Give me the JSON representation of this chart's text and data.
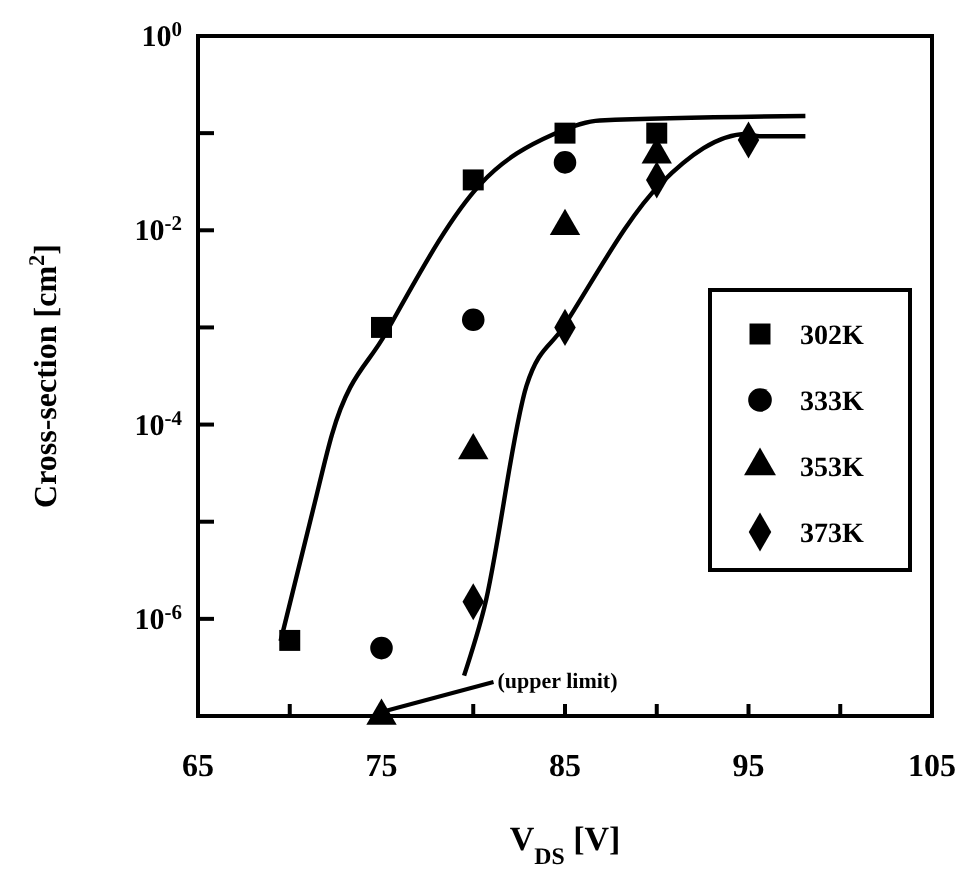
{
  "chart_data": {
    "type": "scatter",
    "xlabel": "V$_{DS}$ [V]",
    "ylabel": "Cross-section [cm$^{2}$]",
    "log": "y",
    "xlim": [
      65,
      105
    ],
    "ylim": [
      1e-07,
      1
    ],
    "xticks": [
      65,
      {
        "value": 70,
        "label": null
      },
      75,
      {
        "value": 80,
        "label": null
      },
      85,
      {
        "value": 90,
        "label": null
      },
      95,
      {
        "value": 100,
        "label": null
      },
      105
    ],
    "yticks": [
      {
        "value": 1,
        "label": "10$^{0}$"
      },
      {
        "value": 0.1,
        "label": null
      },
      {
        "value": 0.01,
        "label": "10$^{-2}$"
      },
      {
        "value": 0.001,
        "label": null
      },
      {
        "value": 0.0001,
        "label": "10$^{-4}$"
      },
      {
        "value": 1e-05,
        "label": null
      },
      {
        "value": 1e-06,
        "label": "10$^{-6}$"
      },
      {
        "value": 1e-07,
        "label": null
      }
    ],
    "grid": false,
    "legend": "right",
    "series": [
      {
        "name": "302K",
        "color": "#000000",
        "marker": "square",
        "x": [
          70,
          75,
          80,
          85,
          90
        ],
        "values": [
          6e-07,
          0.001,
          0.033,
          0.1,
          0.1
        ]
      },
      {
        "name": "333K",
        "color": "#000000",
        "marker": "circle",
        "x": [
          75,
          80,
          85
        ],
        "values": [
          5e-07,
          0.0012,
          0.05
        ]
      },
      {
        "name": "353K",
        "color": "#000000",
        "marker": "triangle",
        "x": [
          75,
          80,
          85,
          90
        ],
        "values": [
          1e-07,
          5.4e-05,
          0.011,
          0.06
        ]
      },
      {
        "name": "373K",
        "color": "#000000",
        "marker": "diamond",
        "x": [
          80,
          85,
          90,
          95
        ],
        "values": [
          1.5e-06,
          0.001,
          0.033,
          0.085
        ]
      },
      {
        "type": "line",
        "color": "#000000",
        "x": [
          69.5,
          71.3,
          72.3,
          75.2,
          80.4,
          84.4,
          86.9,
          98.1
        ],
        "values": [
          5.9e-07,
          1.4e-05,
          7.9e-05,
          0.00085,
          0.03,
          0.098,
          0.135,
          0.15
        ]
      },
      {
        "type": "line",
        "color": "#000000",
        "x": [
          79.5,
          80.6,
          82.9,
          84.9,
          90.2,
          94.9,
          95.6,
          98.1
        ],
        "values": [
          2.6e-07,
          1.3e-06,
          0.00025,
          0.001,
          0.03,
          0.098,
          0.093,
          0.093
        ]
      }
    ],
    "annotations": [
      {
        "text": "(upper limit)",
        "x": 75,
        "y": 1e-07
      }
    ]
  }
}
